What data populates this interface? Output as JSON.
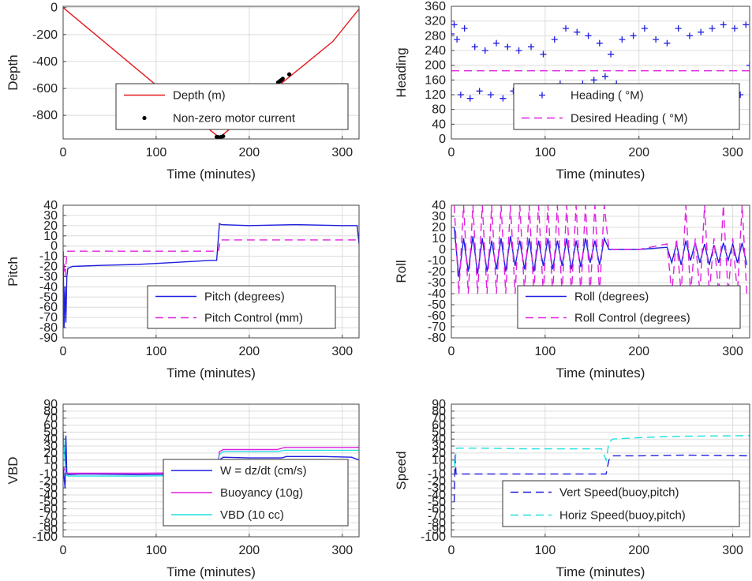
{
  "chart_data": [
    {
      "id": "depth",
      "type": "line",
      "xlabel": "Time (minutes)",
      "ylabel": "Depth",
      "xlim": [
        0,
        318
      ],
      "ylim": [
        -975,
        10
      ],
      "xticks": [
        0,
        100,
        200,
        300
      ],
      "yticks": [
        0,
        -200,
        -400,
        -600,
        -800
      ],
      "grid": true,
      "legend_position": "lower-right",
      "series": [
        {
          "name": "Depth (m)",
          "style": "solid",
          "color": "#e41a1c",
          "x": [
            0,
            40,
            80,
            120,
            150,
            168,
            200,
            235,
            260,
            290,
            318
          ],
          "y": [
            0,
            -230,
            -460,
            -690,
            -865,
            -965,
            -780,
            -560,
            -420,
            -250,
            -10
          ]
        },
        {
          "name": "Non-zero motor current",
          "style": "dots",
          "color": "#000000",
          "x": [
            165,
            167,
            168,
            170,
            172,
            231,
            233,
            234,
            235,
            236,
            243
          ],
          "y": [
            -960,
            -962,
            -965,
            -960,
            -955,
            -555,
            -545,
            -540,
            -535,
            -528,
            -495
          ]
        }
      ]
    },
    {
      "id": "heading",
      "type": "scatter",
      "xlabel": "Time (minutes)",
      "ylabel": "Heading",
      "xlim": [
        0,
        318
      ],
      "ylim": [
        0,
        360
      ],
      "xticks": [
        0,
        100,
        200,
        300
      ],
      "yticks": [
        0,
        40,
        80,
        120,
        160,
        200,
        240,
        280,
        320,
        360
      ],
      "grid": true,
      "legend_position": "lower-right",
      "series": [
        {
          "name": "Heading (  °M)",
          "style": "plus",
          "color": "#1f1fe0",
          "x": [
            0,
            3,
            6,
            10,
            14,
            20,
            25,
            30,
            36,
            42,
            48,
            55,
            60,
            66,
            72,
            78,
            85,
            92,
            98,
            104,
            110,
            116,
            122,
            128,
            134,
            140,
            146,
            152,
            158,
            164,
            170,
            176,
            182,
            188,
            194,
            200,
            206,
            212,
            218,
            224,
            230,
            236,
            242,
            248,
            254,
            260,
            266,
            272,
            278,
            284,
            290,
            296,
            302,
            308,
            314,
            318
          ],
          "y": [
            285,
            310,
            270,
            120,
            300,
            110,
            250,
            130,
            240,
            120,
            260,
            110,
            250,
            130,
            240,
            110,
            250,
            140,
            230,
            120,
            270,
            150,
            300,
            130,
            290,
            150,
            280,
            160,
            260,
            170,
            230,
            150,
            270,
            140,
            280,
            120,
            300,
            110,
            270,
            130,
            260,
            120,
            300,
            110,
            280,
            100,
            290,
            120,
            300,
            110,
            310,
            130,
            300,
            120,
            310,
            200
          ]
        },
        {
          "name": "Desired Heading (    °M)",
          "style": "dashed",
          "color": "#e020e0",
          "x": [
            0,
            318
          ],
          "y": [
            185,
            185
          ]
        }
      ]
    },
    {
      "id": "pitch",
      "type": "line",
      "xlabel": "Time (minutes)",
      "ylabel": "Pitch",
      "xlim": [
        0,
        318
      ],
      "ylim": [
        -90,
        40
      ],
      "xticks": [
        0,
        100,
        200,
        300
      ],
      "yticks": [
        40,
        30,
        20,
        10,
        0,
        -10,
        -20,
        -30,
        -40,
        -50,
        -60,
        -70,
        -80,
        -90
      ],
      "grid": true,
      "legend_position": "lower-right",
      "series": [
        {
          "name": "Pitch (degrees)",
          "style": "solid",
          "color": "#1f1fe0",
          "x": [
            0,
            1,
            2,
            3,
            4,
            5,
            10,
            40,
            80,
            120,
            160,
            165,
            168,
            170,
            200,
            250,
            300,
            316,
            318
          ],
          "y": [
            -5,
            -80,
            -40,
            -75,
            -30,
            -22,
            -20,
            -19,
            -18,
            -16,
            -14,
            -14,
            22,
            21,
            20,
            21,
            20,
            20,
            2
          ]
        },
        {
          "name": "Pitch Control (mm)",
          "style": "dashed",
          "color": "#e020e0",
          "x": [
            0,
            2,
            4,
            5,
            20,
            80,
            165,
            167,
            169,
            200,
            250,
            318
          ],
          "y": [
            -5,
            -30,
            -8,
            -5,
            -5,
            -5,
            -5,
            -5,
            6,
            6,
            6,
            6
          ]
        }
      ]
    },
    {
      "id": "roll",
      "type": "line",
      "xlabel": "Time (minutes)",
      "ylabel": "Roll",
      "xlim": [
        0,
        318
      ],
      "ylim": [
        -80,
        40
      ],
      "xticks": [
        0,
        100,
        200,
        300
      ],
      "yticks": [
        40,
        30,
        20,
        10,
        0,
        -10,
        -20,
        -30,
        -40,
        -50,
        -60,
        -70,
        -80
      ],
      "grid": true,
      "legend_position": "lower-right",
      "series": [
        {
          "name": "Roll (degrees)",
          "style": "solid",
          "color": "#1f1fe0",
          "x": [
            3,
            8,
            13,
            18,
            23,
            28,
            33,
            38,
            43,
            48,
            53,
            58,
            63,
            68,
            73,
            78,
            83,
            88,
            93,
            98,
            103,
            108,
            113,
            118,
            123,
            128,
            133,
            138,
            143,
            148,
            153,
            158,
            163,
            168,
            200,
            230,
            235,
            240,
            245,
            250,
            255,
            260,
            265,
            270,
            275,
            280,
            285,
            290,
            295,
            300,
            305,
            310,
            315
          ],
          "y": [
            20,
            -25,
            10,
            -20,
            12,
            -22,
            10,
            -20,
            8,
            -18,
            10,
            -20,
            12,
            -15,
            8,
            -18,
            10,
            -20,
            8,
            -15,
            10,
            -18,
            8,
            -15,
            10,
            -18,
            8,
            -16,
            10,
            -12,
            8,
            -14,
            10,
            0,
            0,
            2,
            -12,
            5,
            -14,
            8,
            -10,
            6,
            -12,
            5,
            -14,
            4,
            -12,
            6,
            -10,
            5,
            -12,
            6,
            -14
          ]
        },
        {
          "name": "Roll Control (degrees)",
          "style": "dashed",
          "color": "#e020e0",
          "x": [
            3,
            8,
            13,
            18,
            23,
            28,
            33,
            38,
            43,
            48,
            53,
            58,
            63,
            68,
            73,
            78,
            83,
            88,
            93,
            98,
            103,
            108,
            113,
            118,
            123,
            128,
            133,
            138,
            143,
            148,
            153,
            158,
            163,
            168,
            200,
            230,
            235,
            240,
            245,
            250,
            255,
            260,
            265,
            270,
            275,
            280,
            285,
            290,
            295,
            300,
            305,
            310,
            315
          ],
          "y": [
            40,
            -40,
            40,
            -40,
            40,
            -40,
            40,
            -40,
            40,
            -40,
            40,
            -40,
            40,
            -40,
            40,
            -40,
            40,
            -40,
            40,
            -40,
            40,
            -40,
            40,
            -40,
            40,
            -40,
            40,
            -40,
            40,
            -40,
            40,
            -40,
            40,
            0,
            0,
            5,
            -40,
            10,
            -40,
            40,
            -40,
            10,
            -40,
            40,
            -40,
            10,
            -40,
            40,
            -40,
            10,
            -40,
            40,
            -40
          ]
        }
      ]
    },
    {
      "id": "vbd",
      "type": "line",
      "xlabel": "Time (minutes)",
      "ylabel": "VBD",
      "xlim": [
        0,
        318
      ],
      "ylim": [
        -100,
        90
      ],
      "xticks": [
        0,
        100,
        200,
        300
      ],
      "yticks": [
        90,
        80,
        70,
        60,
        50,
        40,
        30,
        20,
        10,
        0,
        -10,
        -20,
        -30,
        -40,
        -50,
        -60,
        -70,
        -80,
        -90,
        -100
      ],
      "grid": true,
      "legend_position": "lower-right",
      "series": [
        {
          "name": "W = dz/dt (cm/s)",
          "style": "solid",
          "color": "#1f1fe0",
          "x": [
            0,
            2,
            3,
            4,
            6,
            20,
            80,
            140,
            165,
            168,
            172,
            200,
            235,
            240,
            280,
            310,
            318
          ],
          "y": [
            0,
            -30,
            45,
            -10,
            -11,
            -10,
            -11,
            -10,
            -10,
            10,
            14,
            13,
            13,
            15,
            15,
            14,
            10
          ]
        },
        {
          "name": "Buoyancy (10g)",
          "style": "solid",
          "color": "#e020e0",
          "x": [
            0,
            3,
            6,
            80,
            160,
            165,
            168,
            172,
            230,
            238,
            318
          ],
          "y": [
            0,
            -8,
            -9,
            -9,
            -8,
            -8,
            22,
            25,
            25,
            28,
            28
          ]
        },
        {
          "name": "VBD (10 cc)",
          "style": "solid",
          "color": "#20e0e0",
          "x": [
            0,
            3,
            6,
            80,
            160,
            165,
            168,
            172,
            230,
            238,
            318
          ],
          "y": [
            50,
            -12,
            -13,
            -13,
            -12,
            -12,
            18,
            22,
            22,
            24,
            24
          ]
        }
      ]
    },
    {
      "id": "speed",
      "type": "line",
      "xlabel": "Time (minutes)",
      "ylabel": "Speed",
      "xlim": [
        0,
        318
      ],
      "ylim": [
        -100,
        90
      ],
      "xticks": [
        0,
        100,
        200,
        300
      ],
      "yticks": [
        90,
        80,
        70,
        60,
        50,
        40,
        30,
        20,
        10,
        0,
        -10,
        -20,
        -30,
        -40,
        -50,
        -60,
        -70,
        -80,
        -90,
        -100
      ],
      "grid": true,
      "legend_position": "lower-right",
      "series": [
        {
          "name": "Vert Speed(buoy,pitch)",
          "style": "dashed",
          "color": "#1f1fe0",
          "x": [
            3,
            4,
            5,
            6,
            30,
            80,
            160,
            165,
            168,
            172,
            200,
            250,
            318
          ],
          "y": [
            -50,
            20,
            -10,
            -10,
            -10,
            -10,
            -10,
            -10,
            10,
            16,
            16,
            17,
            16
          ]
        },
        {
          "name": "Horiz Speed(buoy,pitch)",
          "style": "dashed",
          "color": "#20e0e0",
          "x": [
            3,
            4,
            5,
            6,
            30,
            80,
            160,
            165,
            168,
            172,
            200,
            240,
            318
          ],
          "y": [
            10,
            0,
            25,
            27,
            27,
            26,
            26,
            10,
            35,
            40,
            42,
            44,
            45
          ]
        }
      ]
    }
  ]
}
